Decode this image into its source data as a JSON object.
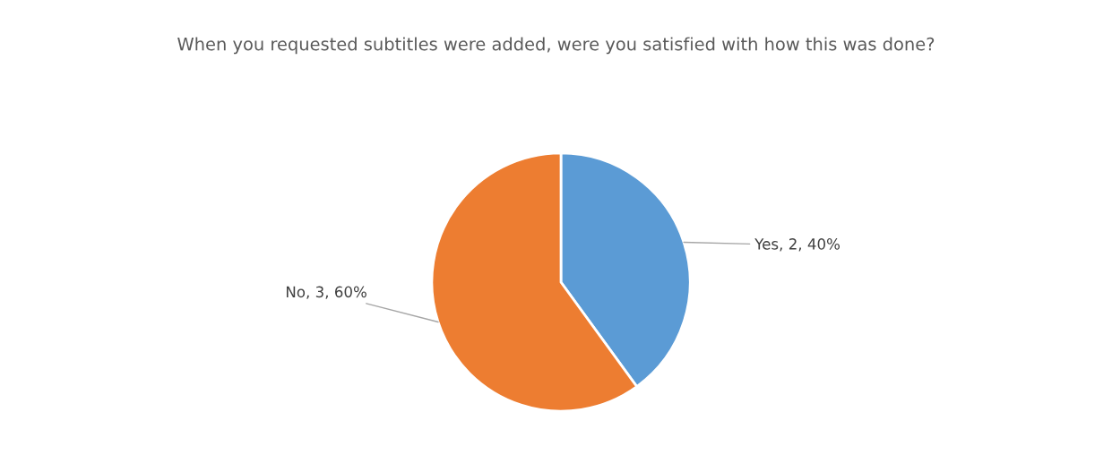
{
  "chart_data": {
    "type": "pie",
    "title": "When you requested subtitles were added, were you satisfied with how this was done?",
    "categories": [
      "Yes",
      "No"
    ],
    "values": [
      2,
      3
    ],
    "colors": [
      "#5b9bd5",
      "#ed7d31"
    ],
    "value_labels": [
      "2, 40%",
      "3, 60%"
    ]
  }
}
